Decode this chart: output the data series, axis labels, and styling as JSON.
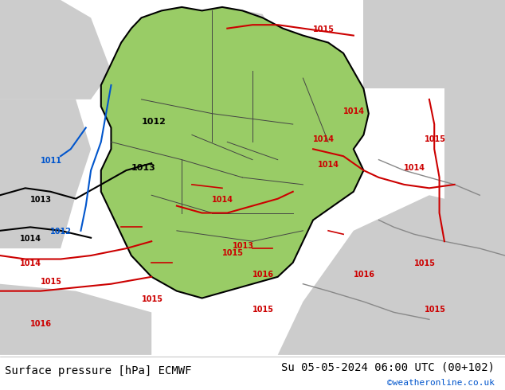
{
  "title_left": "Surface pressure [hPa] ECMWF",
  "title_right": "Su 05-05-2024 06:00 UTC (00+102)",
  "credit": "©weatheronline.co.uk",
  "bg_map_color": "#99cc66",
  "bg_outside_color": "#cccccc",
  "border_color": "#000000",
  "red_contour_color": "#cc0000",
  "blue_contour_color": "#0055cc",
  "black_contour_color": "#000000",
  "gray_contour_color": "#888888",
  "label_fontsize": 9,
  "footer_fontsize": 10,
  "credit_color": "#0055cc",
  "fig_width": 6.34,
  "fig_height": 4.9,
  "dpi": 100
}
